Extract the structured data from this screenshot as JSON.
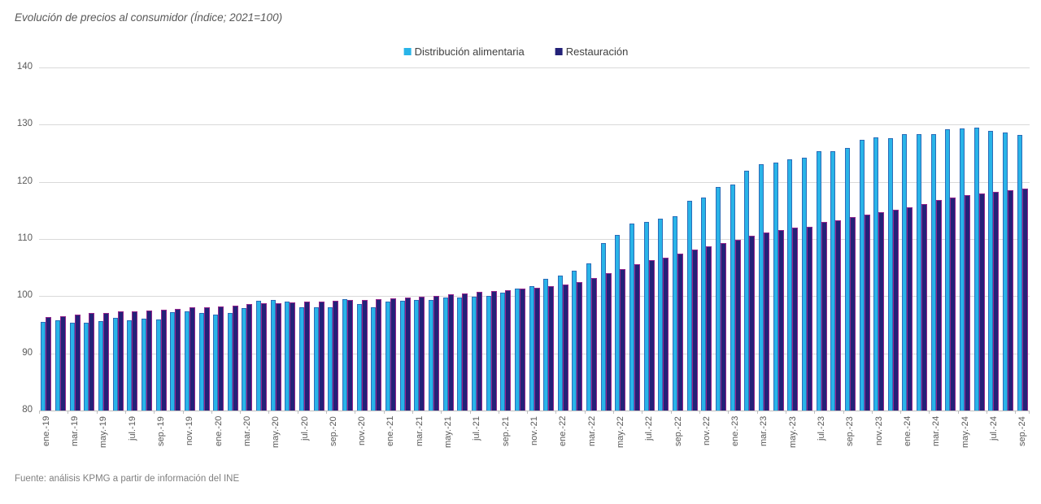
{
  "title": "Evolución de precios al consumidor (Índice; 2021=100)",
  "source": "Fuente: análisis KPMG a partir de información del INE",
  "colors": {
    "food_fill": "#29B4E8",
    "food_border": "#2B6CB8",
    "rest_fill": "#232178",
    "rest_border": "#94278E",
    "grid": "#d9d9d9",
    "axis": "#bfbfbf",
    "label": "#595959"
  },
  "legend": [
    {
      "label": "Distribución alimentaria"
    },
    {
      "label": "Restauración"
    }
  ],
  "chart_data": {
    "type": "bar",
    "title": "Evolución de precios al consumidor (Índice; 2021=100)",
    "xlabel": "",
    "ylabel": "",
    "ylim": [
      80,
      140
    ],
    "yticks": [
      80,
      90,
      100,
      110,
      120,
      130,
      140
    ],
    "grid": true,
    "legend_position": "top",
    "x_tick_label_every": 2,
    "categories": [
      "ene.-19",
      "feb.-19",
      "mar.-19",
      "abr.-19",
      "may.-19",
      "jun.-19",
      "jul.-19",
      "ago.-19",
      "sep.-19",
      "oct.-19",
      "nov.-19",
      "dic.-19",
      "ene.-20",
      "feb.-20",
      "mar.-20",
      "abr.-20",
      "may.-20",
      "jun.-20",
      "jul.-20",
      "ago.-20",
      "sep.-20",
      "oct.-20",
      "nov.-20",
      "dic.-20",
      "ene.-21",
      "feb.-21",
      "mar.-21",
      "abr.-21",
      "may.-21",
      "jun.-21",
      "jul.-21",
      "ago.-21",
      "sep.-21",
      "oct.-21",
      "nov.-21",
      "dic.-21",
      "ene.-22",
      "feb.-22",
      "mar.-22",
      "abr.-22",
      "may.-22",
      "jun.-22",
      "jul.-22",
      "ago.-22",
      "sep.-22",
      "oct.-22",
      "nov.-22",
      "dic.-22",
      "ene.-23",
      "feb.-23",
      "mar.-23",
      "abr.-23",
      "may.-23",
      "jun.-23",
      "jul.-23",
      "ago.-23",
      "sep.-23",
      "oct.-23",
      "nov.-23",
      "dic.-23",
      "ene.-24",
      "feb.-24",
      "mar.-24",
      "abr.-24",
      "may.-24",
      "jun.-24",
      "jul.-24",
      "ago.-24",
      "sep.-24"
    ],
    "series": [
      {
        "name": "Distribución alimentaria",
        "values": [
          95.5,
          95.8,
          95.4,
          95.4,
          95.7,
          96.2,
          95.8,
          96.0,
          95.9,
          97.2,
          97.4,
          97.1,
          96.8,
          97.1,
          97.9,
          99.2,
          99.4,
          99.0,
          98.0,
          98.1,
          98.0,
          99.5,
          98.6,
          98.1,
          99.0,
          99.2,
          99.3,
          99.4,
          99.8,
          99.8,
          99.9,
          100.0,
          100.6,
          101.4,
          101.8,
          103.0,
          103.6,
          104.5,
          105.7,
          109.3,
          110.7,
          112.7,
          113.0,
          113.5,
          114.0,
          116.7,
          117.2,
          119.1,
          119.5,
          121.9,
          123.1,
          123.4,
          124.0,
          124.2,
          125.3,
          125.4,
          125.9,
          127.4,
          127.8,
          127.6,
          128.3,
          128.3,
          128.4,
          129.2,
          129.3,
          129.5,
          128.9,
          128.6,
          128.2
        ]
      },
      {
        "name": "Restauración",
        "values": [
          96.3,
          96.5,
          96.8,
          97.0,
          97.1,
          97.3,
          97.4,
          97.5,
          97.6,
          97.8,
          98.0,
          98.1,
          98.2,
          98.4,
          98.6,
          98.7,
          98.8,
          98.9,
          99.0,
          99.1,
          99.2,
          99.3,
          99.4,
          99.5,
          99.6,
          99.8,
          99.9,
          100.1,
          100.3,
          100.5,
          100.7,
          100.9,
          101.0,
          101.3,
          101.5,
          101.8,
          102.0,
          102.5,
          103.2,
          104.0,
          104.8,
          105.6,
          106.3,
          106.8,
          107.4,
          108.1,
          108.7,
          109.3,
          109.9,
          110.5,
          111.1,
          111.6,
          112.0,
          112.2,
          113.0,
          113.3,
          113.8,
          114.3,
          114.7,
          115.1,
          115.6,
          116.1,
          116.8,
          117.2,
          117.7,
          117.9,
          118.3,
          118.5,
          118.8
        ]
      }
    ]
  }
}
